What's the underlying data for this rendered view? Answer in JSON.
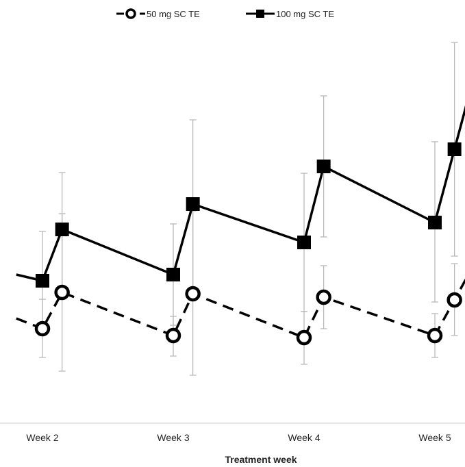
{
  "chart_data": {
    "type": "line",
    "title": "",
    "xlabel": "Treatment week",
    "ylabel": "",
    "categories": [
      "Week 2",
      "Week 3",
      "Week 4",
      "Week 5"
    ],
    "grid": false,
    "legend_placement": "top",
    "series": [
      {
        "name": "50 mg SC TE",
        "style": "dashed",
        "marker": "open-circle",
        "color": "#000000",
        "points": [
          {
            "x": 1.8,
            "y": 465,
            "err_lo": null,
            "err_hi": null
          },
          {
            "x": 2.0,
            "y": 480,
            "err_lo": 522,
            "err_hi": 437
          },
          {
            "x": 2.15,
            "y": 427,
            "err_lo": 542,
            "err_hi": 312
          },
          {
            "x": 3.0,
            "y": 490,
            "err_lo": 520,
            "err_hi": 462
          },
          {
            "x": 3.15,
            "y": 429,
            "err_lo": 548,
            "err_hi": 308
          },
          {
            "x": 4.0,
            "y": 493,
            "err_lo": 532,
            "err_hi": 455
          },
          {
            "x": 4.15,
            "y": 434,
            "err_lo": 480,
            "err_hi": 388
          },
          {
            "x": 5.0,
            "y": 490,
            "err_lo": 522,
            "err_hi": 458
          },
          {
            "x": 5.15,
            "y": 438,
            "err_lo": 490,
            "err_hi": 385
          }
        ]
      },
      {
        "name": "100 mg SC TE",
        "style": "solid",
        "marker": "filled-square",
        "color": "#000000",
        "points": [
          {
            "x": 1.8,
            "y": 401,
            "err_lo": null,
            "err_hi": null
          },
          {
            "x": 2.0,
            "y": 410,
            "err_lo": 480,
            "err_hi": 338
          },
          {
            "x": 2.15,
            "y": 335,
            "err_lo": 418,
            "err_hi": 252
          },
          {
            "x": 3.0,
            "y": 401,
            "err_lo": 475,
            "err_hi": 327
          },
          {
            "x": 3.15,
            "y": 298,
            "err_lo": 420,
            "err_hi": 175
          },
          {
            "x": 4.0,
            "y": 354,
            "err_lo": 455,
            "err_hi": 253
          },
          {
            "x": 4.15,
            "y": 243,
            "err_lo": 346,
            "err_hi": 140
          },
          {
            "x": 5.0,
            "y": 325,
            "err_lo": 441,
            "err_hi": 207
          },
          {
            "x": 5.15,
            "y": 218,
            "err_lo": 374,
            "err_hi": 62
          }
        ]
      }
    ]
  }
}
